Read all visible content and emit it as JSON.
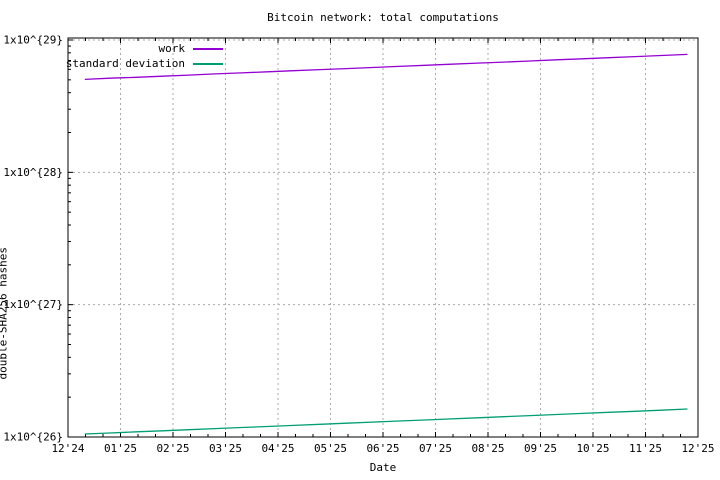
{
  "chart_data": {
    "type": "line",
    "title": "Bitcoin network: total computations",
    "xlabel": "Date",
    "ylabel": "double-SHA256 hashes",
    "x_axis": {
      "tick_labels": [
        "12'24",
        "01'25",
        "02'25",
        "03'25",
        "04'25",
        "05'25",
        "06'25",
        "07'25",
        "08'25",
        "09'25",
        "10'25",
        "11'25",
        "12'25"
      ],
      "minor_divisions_per_month": 3
    },
    "y_axis": {
      "scale": "log10",
      "tick_labels": [
        "1x10^{26}",
        "1x10^{27}",
        "1x10^{28}",
        "1x10^{29}"
      ],
      "tick_values": [
        1e+26,
        1e+27,
        1e+28,
        1e+29
      ],
      "min": 1e+26,
      "max": 1.04e+29
    },
    "grid": true,
    "legend_position": "top-left-inside",
    "colors": {
      "axis": "#000000",
      "grid": "#aaaaaa",
      "background": "#ffffff"
    },
    "x_encoding": "months after 12'24 tick",
    "series": [
      {
        "name": "work",
        "color": "#9400d3",
        "points": [
          [
            0.32,
            5.04e+28
          ],
          [
            0.8,
            5.14e+28
          ],
          [
            1.3,
            5.23e+28
          ],
          [
            1.8,
            5.33e+28
          ],
          [
            2.3,
            5.43e+28
          ],
          [
            2.8,
            5.54e+28
          ],
          [
            3.3,
            5.64e+28
          ],
          [
            3.8,
            5.75e+28
          ],
          [
            4.3,
            5.86e+28
          ],
          [
            4.8,
            5.97e+28
          ],
          [
            5.3,
            6.08e+28
          ],
          [
            5.8,
            6.2e+28
          ],
          [
            6.3,
            6.32e+28
          ],
          [
            6.8,
            6.44e+28
          ],
          [
            7.3,
            6.56e+28
          ],
          [
            7.8,
            6.69e+28
          ],
          [
            8.3,
            6.81e+28
          ],
          [
            8.8,
            6.94e+28
          ],
          [
            9.3,
            7.08e+28
          ],
          [
            9.8,
            7.21e+28
          ],
          [
            10.3,
            7.35e+28
          ],
          [
            10.8,
            7.49e+28
          ],
          [
            11.3,
            7.63e+28
          ],
          [
            11.8,
            7.78e+28
          ]
        ]
      },
      {
        "name": "standard deviation",
        "color": "#009e73",
        "points": [
          [
            0.32,
            1.053e+26
          ],
          [
            0.8,
            1.073e+26
          ],
          [
            1.3,
            1.094e+26
          ],
          [
            1.8,
            1.114e+26
          ],
          [
            2.3,
            1.135e+26
          ],
          [
            2.8,
            1.157e+26
          ],
          [
            3.3,
            1.179e+26
          ],
          [
            3.8,
            1.201e+26
          ],
          [
            4.3,
            1.224e+26
          ],
          [
            4.8,
            1.247e+26
          ],
          [
            5.3,
            1.271e+26
          ],
          [
            5.8,
            1.296e+26
          ],
          [
            6.3,
            1.32e+26
          ],
          [
            6.8,
            1.345e+26
          ],
          [
            7.3,
            1.371e+26
          ],
          [
            7.8,
            1.397e+26
          ],
          [
            8.3,
            1.424e+26
          ],
          [
            8.8,
            1.451e+26
          ],
          [
            9.3,
            1.479e+26
          ],
          [
            9.8,
            1.507e+26
          ],
          [
            10.3,
            1.536e+26
          ],
          [
            10.8,
            1.565e+26
          ],
          [
            11.3,
            1.595e+26
          ],
          [
            11.8,
            1.628e+26
          ]
        ]
      }
    ]
  }
}
